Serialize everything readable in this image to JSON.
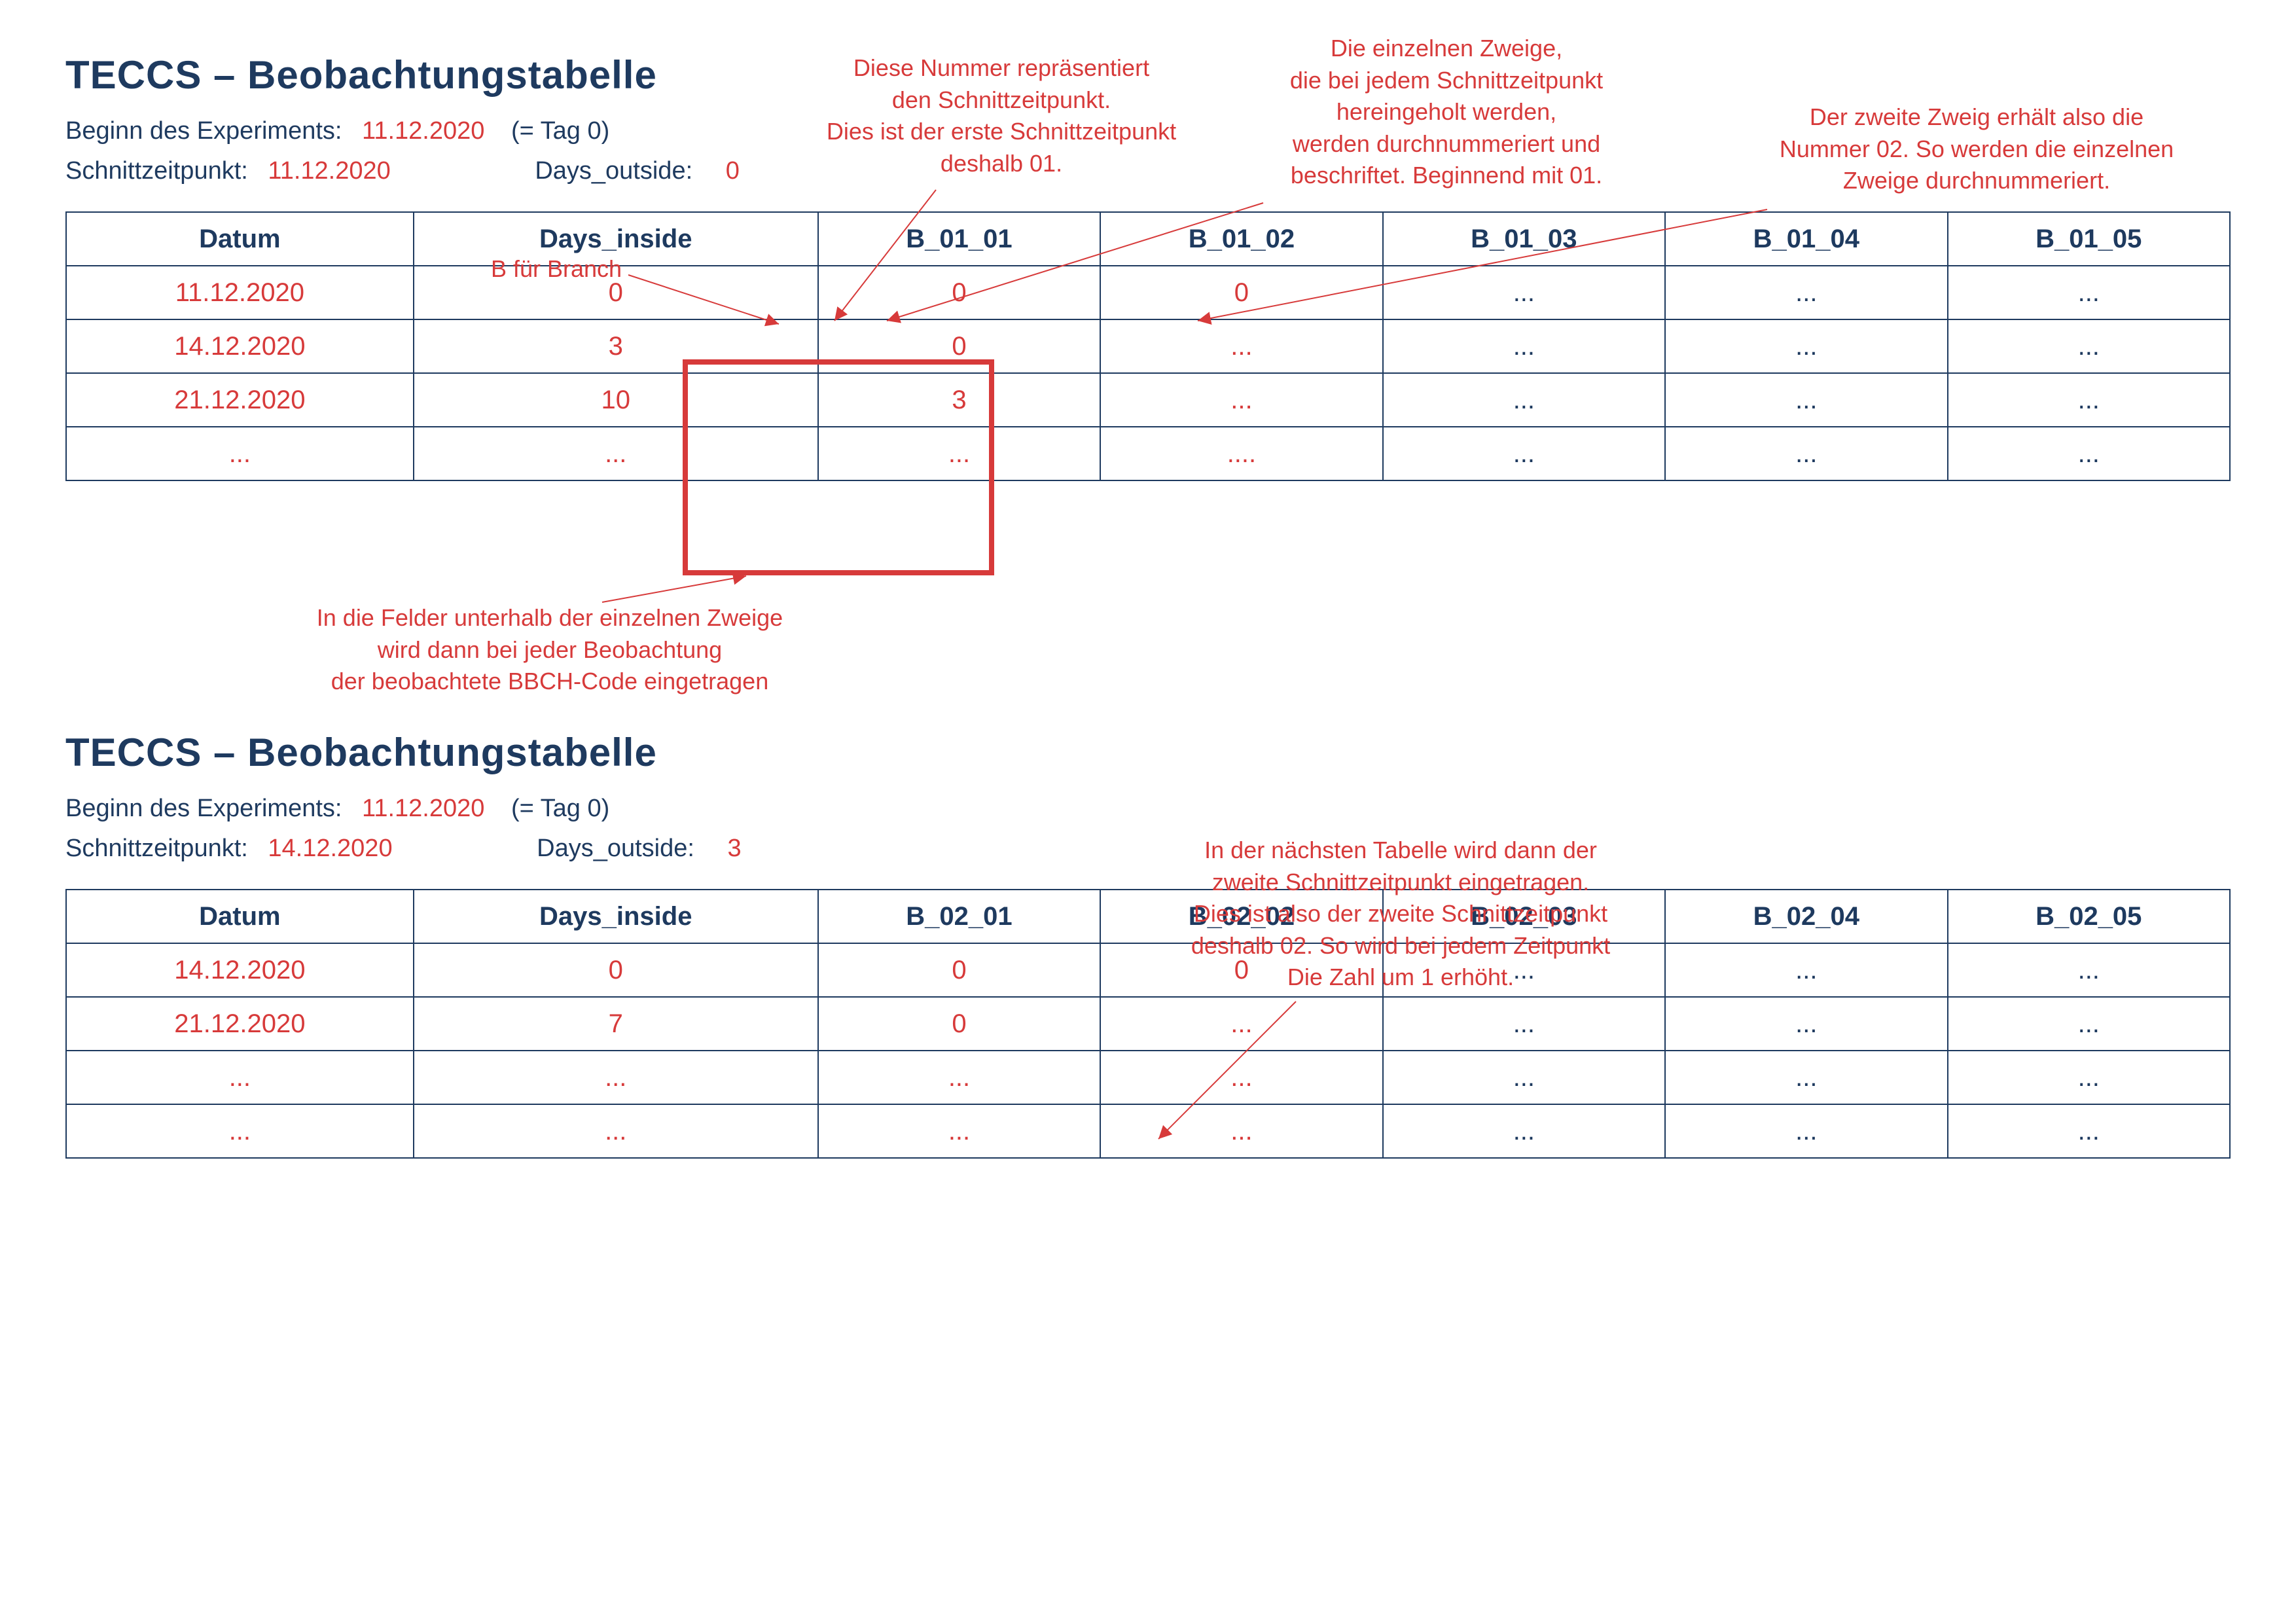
{
  "colors": {
    "dark": "#1e3a5f",
    "red": "#d73a3a",
    "background": "#ffffff",
    "table_border": "#1e3a5f",
    "highlight_border": "#d73a3a"
  },
  "typography": {
    "title_fontsize": 60,
    "body_fontsize": 38,
    "annotation_fontsize": 36,
    "table_fontsize": 40
  },
  "section1": {
    "title": "TECCS – Beobachtungstabelle",
    "experiment_label": "Beginn des Experiments:",
    "experiment_date": "11.12.2020",
    "tag_label": "(= Tag 0)",
    "schnitt_label": "Schnittzeitpunkt:",
    "schnitt_date": "11.12.2020",
    "days_outside_label": "Days_outside:",
    "days_outside_val": "0",
    "branch_note": "B für Branch",
    "columns": [
      "Datum",
      "Days_inside",
      "B_01_01",
      "B_01_02",
      "B_01_03",
      "B_01_04",
      "B_01_05"
    ],
    "rows": [
      [
        "11.12.2020",
        "0",
        "0",
        "0",
        "...",
        "...",
        "..."
      ],
      [
        "14.12.2020",
        "3",
        "0",
        "...",
        "...",
        "...",
        "..."
      ],
      [
        "21.12.2020",
        "10",
        "3",
        "...",
        "...",
        "...",
        "..."
      ],
      [
        "...",
        "...",
        "...",
        "....",
        "...",
        "...",
        "..."
      ]
    ],
    "row_colors": [
      "red",
      "red",
      "red",
      "red",
      "dark",
      "dark",
      "dark"
    ]
  },
  "section2": {
    "title": "TECCS – Beobachtungstabelle",
    "experiment_label": "Beginn des Experiments:",
    "experiment_date": "11.12.2020",
    "tag_label": "(= Tag 0)",
    "schnitt_label": "Schnittzeitpunkt:",
    "schnitt_date": "14.12.2020",
    "days_outside_label": "Days_outside:",
    "days_outside_val": "3",
    "columns": [
      "Datum",
      "Days_inside",
      "B_02_01",
      "B_02_02",
      "B_02_03",
      "B_02_04",
      "B_02_05"
    ],
    "rows": [
      [
        "14.12.2020",
        "0",
        "0",
        "0",
        "...",
        "...",
        "..."
      ],
      [
        "21.12.2020",
        "7",
        "0",
        "...",
        "...",
        "...",
        "..."
      ],
      [
        "...",
        "...",
        "...",
        "...",
        "...",
        "...",
        "..."
      ],
      [
        "...",
        "...",
        "...",
        "...",
        "...",
        "...",
        "..."
      ]
    ],
    "row_colors": [
      "red",
      "red",
      "red",
      "red",
      "dark",
      "dark",
      "dark"
    ]
  },
  "annotations": {
    "a1": "Diese Nummer repräsentiert\nden Schnittzeitpunkt.\nDies ist der erste Schnittzeitpunkt\ndeshalb 01.",
    "a2": "Die einzelnen Zweige,\ndie bei jedem Schnittzeitpunkt\nhereingeholt werden,\nwerden durchnummeriert und\nbeschriftet. Beginnend mit 01.",
    "a3": "Der zweite Zweig erhält also die\nNummer 02. So werden die einzelnen\nZweige durchnummeriert.",
    "a4": "In die Felder unterhalb der einzelnen Zweige\nwird dann bei jeder Beobachtung\nder beobachtete BBCH-Code eingetragen",
    "a5": "In der nächsten Tabelle wird dann der\nzweite Schnittzeitpunkt eingetragen.\nDies ist also der zweite Schnittzeitpunkt\ndeshalb 02. So wird bei jedem Zeitpunkt\nDie Zahl um 1 erhöht."
  }
}
